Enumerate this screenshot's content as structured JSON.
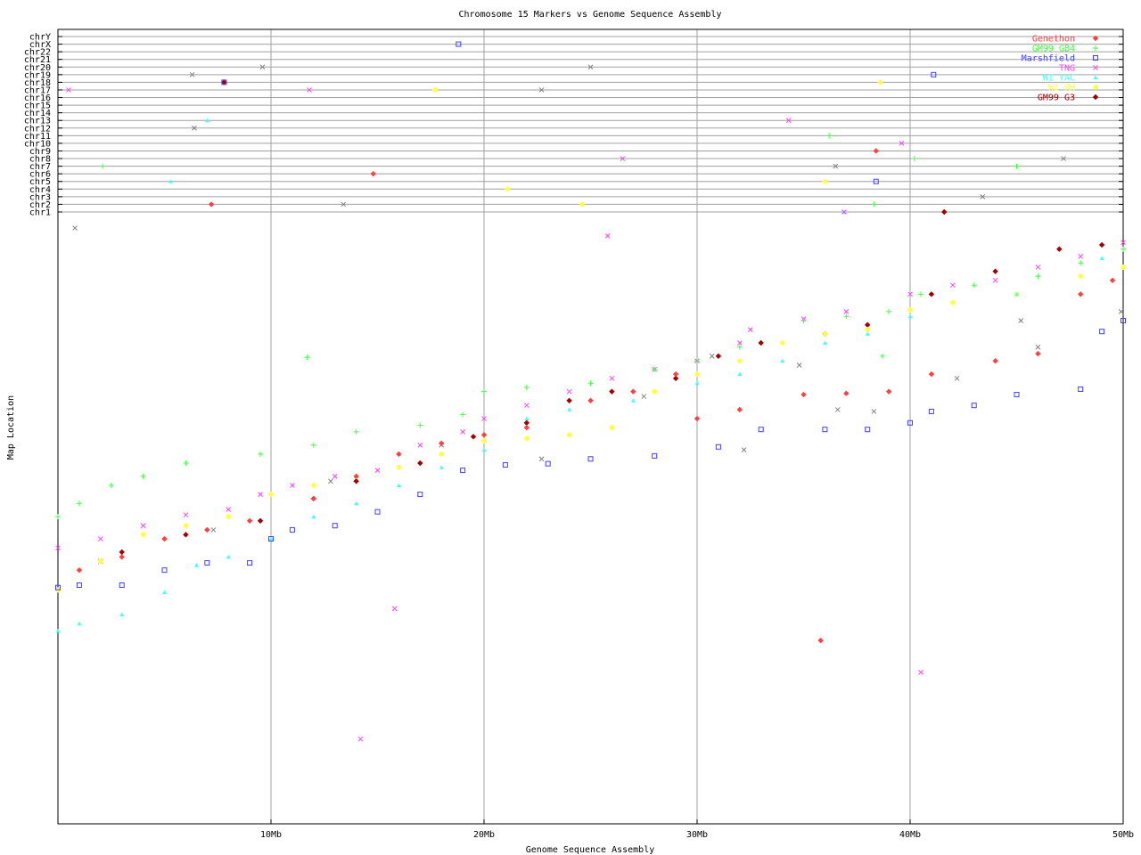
{
  "chart_data": {
    "type": "scatter",
    "title": "Chromosome 15 Markers vs Genome Sequence Assembly",
    "xlabel": "Genome Sequence Assembly",
    "ylabel": "Map Location",
    "xlim": [
      0,
      50
    ],
    "x_unit": "Mb",
    "x_ticks": [
      {
        "value": 10,
        "label": "10Mb"
      },
      {
        "value": 20,
        "label": "20Mb"
      },
      {
        "value": 30,
        "label": "30Mb"
      },
      {
        "value": 40,
        "label": "40Mb"
      },
      {
        "value": 50,
        "label": "50Mb"
      }
    ],
    "ylim": [
      0,
      100
    ],
    "grid": true,
    "legend_position": "top-right",
    "chromosome_rows": [
      "chrY",
      "chrX",
      "chr22",
      "chr21",
      "chr20",
      "chr19",
      "chr18",
      "chr17",
      "chr16",
      "chr15",
      "chr14",
      "chr13",
      "chr12",
      "chr11",
      "chr10",
      "chr9",
      "chr8",
      "chr7",
      "chr6",
      "chr5",
      "chr4",
      "chr3",
      "chr2",
      "chr1"
    ],
    "series": [
      {
        "name": "Genethon",
        "color": "#ff4040",
        "marker": "diamond",
        "points": [
          [
            1,
            42.2
          ],
          [
            3,
            44.4
          ],
          [
            5,
            47.4
          ],
          [
            7,
            48.9
          ],
          [
            9,
            50.4
          ],
          [
            12,
            54.1
          ],
          [
            14,
            57.8
          ],
          [
            16,
            61.5
          ],
          [
            18,
            63.3
          ],
          [
            20,
            64.7
          ],
          [
            22,
            65.9
          ],
          [
            25,
            70.4
          ],
          [
            27,
            71.9
          ],
          [
            29,
            74.8
          ],
          [
            30,
            67.4
          ],
          [
            32,
            68.9
          ],
          [
            35,
            71.4
          ],
          [
            37,
            71.6
          ],
          [
            39,
            71.9
          ],
          [
            41,
            74.8
          ],
          [
            44,
            77
          ],
          [
            46,
            78.2
          ],
          [
            48,
            88.1
          ],
          [
            49.5,
            90.4
          ],
          [
            35.8,
            30.5
          ]
        ],
        "off_chromosome": [
          {
            "chr": "chr6",
            "x": 14.8
          },
          {
            "chr": "chr2",
            "x": 7.2
          },
          {
            "chr": "chr9",
            "x": 38.4
          }
        ]
      },
      {
        "name": "GM99 GB4",
        "color": "#40ff40",
        "marker": "plus",
        "points": [
          [
            0,
            51.1
          ],
          [
            1,
            53.3
          ],
          [
            2.5,
            56.3
          ],
          [
            4,
            57.8
          ],
          [
            6,
            60
          ],
          [
            9.5,
            61.5
          ],
          [
            12,
            63
          ],
          [
            14,
            65.2
          ],
          [
            17,
            66.3
          ],
          [
            19,
            68.1
          ],
          [
            20,
            71.9
          ],
          [
            22,
            72.6
          ],
          [
            25,
            73.3
          ],
          [
            28,
            75.6
          ],
          [
            30,
            77
          ],
          [
            32,
            79.3
          ],
          [
            35,
            83.7
          ],
          [
            37,
            84.4
          ],
          [
            39,
            85.2
          ],
          [
            40.5,
            88.1
          ],
          [
            43,
            89.6
          ],
          [
            46,
            91.1
          ],
          [
            48,
            93.3
          ],
          [
            50,
            95.6
          ],
          [
            11.7,
            77.6
          ],
          [
            38.7,
            77.8
          ]
        ],
        "off_chromosome": [
          {
            "chr": "chr7",
            "x": 2.1
          },
          {
            "chr": "chr11",
            "x": 36.2
          },
          {
            "chr": "chr8",
            "x": 40.2
          },
          {
            "chr": "chr7",
            "x": 45
          },
          {
            "chr": "chr2",
            "x": 38.3
          }
        ]
      },
      {
        "name": "Marshfield",
        "color": "#4040ff",
        "marker": "square",
        "points": [
          [
            0,
            39.3
          ],
          [
            1,
            39.7
          ],
          [
            3,
            39.7
          ],
          [
            5,
            42.2
          ],
          [
            7,
            43.4
          ],
          [
            9,
            43.4
          ],
          [
            10,
            47.4
          ],
          [
            11,
            48.9
          ],
          [
            13,
            49.6
          ],
          [
            15,
            51.9
          ],
          [
            17,
            54.8
          ],
          [
            19,
            58.8
          ],
          [
            21,
            59.7
          ],
          [
            23,
            59.9
          ],
          [
            25,
            60.7
          ],
          [
            28,
            61.2
          ],
          [
            31,
            62.7
          ],
          [
            33,
            65.6
          ],
          [
            36,
            65.6
          ],
          [
            38,
            65.6
          ],
          [
            40,
            66.7
          ],
          [
            41,
            68.6
          ],
          [
            43,
            69.6
          ],
          [
            45,
            71.4
          ],
          [
            48,
            72.3
          ],
          [
            49,
            81.9
          ],
          [
            50,
            83.7
          ]
        ],
        "off_chromosome": [
          {
            "chr": "chrX",
            "x": 18.8
          },
          {
            "chr": "chr18",
            "x": 7.8
          },
          {
            "chr": "chr19",
            "x": 41.1
          },
          {
            "chr": "chr5",
            "x": 38.4
          }
        ]
      },
      {
        "name": "TNG",
        "color": "#ff40ff",
        "marker": "x",
        "points": [
          [
            0,
            45.9
          ],
          [
            2,
            47.4
          ],
          [
            4,
            49.6
          ],
          [
            6,
            51.4
          ],
          [
            8,
            52.3
          ],
          [
            9.5,
            54.8
          ],
          [
            11,
            56.3
          ],
          [
            13,
            57.8
          ],
          [
            15,
            58.8
          ],
          [
            17,
            63
          ],
          [
            19,
            65.2
          ],
          [
            20,
            67.4
          ],
          [
            22,
            69.6
          ],
          [
            24,
            71.9
          ],
          [
            26,
            74.1
          ],
          [
            28,
            75.6
          ],
          [
            30,
            77
          ],
          [
            32,
            80
          ],
          [
            35,
            84
          ],
          [
            37,
            85.2
          ],
          [
            40,
            88.1
          ],
          [
            42,
            89.6
          ],
          [
            44,
            90.4
          ],
          [
            46,
            92.6
          ],
          [
            48,
            94.4
          ],
          [
            50,
            96.7
          ],
          [
            25.8,
            97.8
          ],
          [
            15.8,
            35.8
          ],
          [
            40.5,
            25.2
          ],
          [
            14.2,
            14.1
          ],
          [
            32.5,
            82.2
          ]
        ],
        "off_chromosome": [
          {
            "chr": "chr17",
            "x": 0.5
          },
          {
            "chr": "chr17",
            "x": 11.8
          },
          {
            "chr": "chr8",
            "x": 26.5
          },
          {
            "chr": "chr13",
            "x": 34.3
          },
          {
            "chr": "chr10",
            "x": 39.6
          },
          {
            "chr": "chr1",
            "x": 36.9
          }
        ]
      },
      {
        "name": "WI YAC",
        "color": "#40ffff",
        "marker": "triangle",
        "points": [
          [
            0,
            32.1
          ],
          [
            1,
            33.3
          ],
          [
            3,
            34.8
          ],
          [
            5,
            38.5
          ],
          [
            6.5,
            43
          ],
          [
            8,
            44.4
          ],
          [
            10,
            47.4
          ],
          [
            12,
            51.1
          ],
          [
            14,
            53.3
          ],
          [
            16,
            56.3
          ],
          [
            18,
            59.3
          ],
          [
            20,
            62.2
          ],
          [
            22,
            67.4
          ],
          [
            24,
            68.9
          ],
          [
            27,
            70.4
          ],
          [
            30,
            73.3
          ],
          [
            32,
            74.8
          ],
          [
            34,
            77
          ],
          [
            36,
            80
          ],
          [
            38,
            81.5
          ],
          [
            40,
            84.4
          ],
          [
            45,
            88.1
          ],
          [
            49,
            94.1
          ]
        ],
        "off_chromosome": [
          {
            "chr": "chr13",
            "x": 7
          },
          {
            "chr": "chr5",
            "x": 5.3
          },
          {
            "chr": "chr1",
            "x": 36.9
          }
        ]
      },
      {
        "name": "WI RH",
        "color": "#ffff40",
        "marker": "star",
        "points": [
          [
            0,
            38.9
          ],
          [
            2,
            43.7
          ],
          [
            4,
            48.1
          ],
          [
            6,
            49.6
          ],
          [
            8,
            51.1
          ],
          [
            10,
            54.8
          ],
          [
            12,
            56.3
          ],
          [
            14,
            57.8
          ],
          [
            16,
            59.3
          ],
          [
            18,
            61.5
          ],
          [
            20,
            63.7
          ],
          [
            22,
            64.1
          ],
          [
            24,
            64.7
          ],
          [
            26,
            65.9
          ],
          [
            28,
            71.9
          ],
          [
            30,
            74.8
          ],
          [
            32,
            77
          ],
          [
            34,
            80
          ],
          [
            36,
            81.5
          ],
          [
            38,
            82.2
          ],
          [
            40,
            85.5
          ],
          [
            42,
            86.7
          ],
          [
            45,
            88.1
          ],
          [
            48,
            91.1
          ],
          [
            50,
            92.6
          ]
        ],
        "off_chromosome": [
          {
            "chr": "chr17",
            "x": 17.7
          },
          {
            "chr": "chr4",
            "x": 21.1
          },
          {
            "chr": "chr2",
            "x": 24.6
          },
          {
            "chr": "chr5",
            "x": 36
          },
          {
            "chr": "chr18",
            "x": 38.6
          }
        ]
      },
      {
        "name": "GM99 G3",
        "color": "#a00000",
        "marker": "diamond",
        "points": [
          [
            3,
            45.2
          ],
          [
            6,
            48.1
          ],
          [
            9.5,
            50.4
          ],
          [
            12,
            54.1
          ],
          [
            14,
            57
          ],
          [
            17,
            60
          ],
          [
            19.5,
            64.4
          ],
          [
            22,
            66.7
          ],
          [
            24,
            70.4
          ],
          [
            26,
            71.9
          ],
          [
            29,
            74.1
          ],
          [
            31,
            77.8
          ],
          [
            33,
            80
          ],
          [
            36,
            81.5
          ],
          [
            38,
            83
          ],
          [
            41,
            88.1
          ],
          [
            44,
            91.9
          ],
          [
            47,
            95.6
          ],
          [
            49,
            96.3
          ]
        ],
        "off_chromosome": [
          {
            "chr": "chr18",
            "x": 7.8
          },
          {
            "chr": "chr1",
            "x": 41.6
          }
        ]
      },
      {
        "color": "#808080",
        "marker": "xdiamond",
        "points": [
          [
            0.8,
            99.1
          ],
          [
            2,
            43.7
          ],
          [
            4,
            49.6
          ],
          [
            7.3,
            48.9
          ],
          [
            12.8,
            57
          ],
          [
            18,
            63
          ],
          [
            22.7,
            60.7
          ],
          [
            27.5,
            71.1
          ],
          [
            30.7,
            77.8
          ],
          [
            32.2,
            62.2
          ],
          [
            34.8,
            76.3
          ],
          [
            36.6,
            68.9
          ],
          [
            38.3,
            68.6
          ],
          [
            42.2,
            74.1
          ],
          [
            45.2,
            83.7
          ],
          [
            46,
            79.3
          ],
          [
            49.9,
            85.2
          ]
        ],
        "off_chromosome": [
          {
            "chr": "chr19",
            "x": 6.3
          },
          {
            "chr": "chr20",
            "x": 9.6
          },
          {
            "chr": "chr20",
            "x": 25
          },
          {
            "chr": "chr17",
            "x": 22.7
          },
          {
            "chr": "chr12",
            "x": 6.4
          },
          {
            "chr": "chr2",
            "x": 13.4
          },
          {
            "chr": "chr7",
            "x": 36.5
          },
          {
            "chr": "chr8",
            "x": 47.2
          },
          {
            "chr": "chr3",
            "x": 43.4
          }
        ]
      }
    ]
  }
}
